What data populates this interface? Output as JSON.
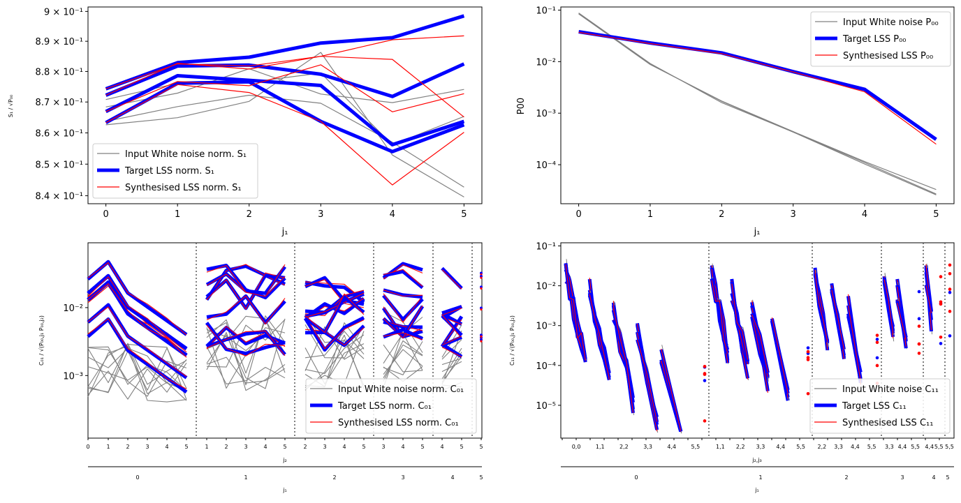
{
  "colors": {
    "input": "#808080",
    "target": "#0000ff",
    "synth": "#ff0000",
    "sep": "#555555"
  },
  "chart_data": [
    {
      "id": "s1",
      "type": "line",
      "scale": "log",
      "xlabel": "j_1",
      "ylabel": "S_1 / sqrt(P_00)",
      "xlim": [
        -0.25,
        5.25
      ],
      "ylim": [
        0.8375,
        0.9015
      ],
      "x": [
        0,
        1,
        2,
        3,
        4,
        5
      ],
      "yticks": [
        0.84,
        0.85,
        0.86,
        0.87,
        0.88,
        0.89,
        0.9
      ],
      "ytick_labels": [
        "8.4 × 10⁻¹",
        "8.5 × 10⁻¹",
        "8.6 × 10⁻¹",
        "8.7 × 10⁻¹",
        "8.8 × 10⁻¹",
        "8.9 × 10⁻¹",
        "9 × 10⁻¹"
      ],
      "xtick_labels": [
        "0",
        "1",
        "2",
        "3",
        "4",
        "5"
      ],
      "series_input": [
        [
          0.8626,
          0.8649,
          0.8702,
          0.8863,
          0.8529,
          0.8396
        ],
        [
          0.8637,
          0.8685,
          0.8722,
          0.8696,
          0.857,
          0.8427
        ],
        [
          0.8684,
          0.8729,
          0.8809,
          0.8726,
          0.8698,
          0.8741
        ],
        [
          0.8708,
          0.8761,
          0.8764,
          0.8795,
          0.8562,
          0.8653
        ]
      ],
      "series_target": [
        [
          0.8743,
          0.8829,
          0.8847,
          0.8894,
          0.8912,
          0.8985
        ],
        [
          0.8722,
          0.8818,
          0.8821,
          0.8791,
          0.8718,
          0.8825
        ],
        [
          0.8669,
          0.8786,
          0.8771,
          0.8754,
          0.8562,
          0.8637
        ],
        [
          0.8633,
          0.8761,
          0.8766,
          0.8637,
          0.854,
          0.8626
        ]
      ],
      "series_synth": [
        [
          0.8743,
          0.8825,
          0.8818,
          0.885,
          0.884,
          0.8651
        ],
        [
          0.8722,
          0.8827,
          0.8808,
          0.885,
          0.8905,
          0.8918
        ],
        [
          0.8669,
          0.8767,
          0.8753,
          0.8822,
          0.8668,
          0.8727
        ],
        [
          0.8633,
          0.8757,
          0.8731,
          0.8637,
          0.8434,
          0.8602
        ]
      ],
      "legend": [
        "Input White noise norm. S₁",
        "Target LSS norm. S₁",
        "Synthesised LSS norm. S₁"
      ],
      "legend_loc": "lower-left"
    },
    {
      "id": "p00",
      "type": "line",
      "scale": "log",
      "xlabel": "j_1",
      "ylabel": "P00",
      "xlim": [
        -0.25,
        5.25
      ],
      "ylim": [
        1.75e-05,
        0.115
      ],
      "x": [
        0,
        1,
        2,
        3,
        4,
        5
      ],
      "yticks": [
        0.0001,
        0.001,
        0.01,
        0.1
      ],
      "ytick_labels": [
        "10⁻⁴",
        "10⁻³",
        "10⁻²",
        "10⁻¹"
      ],
      "xtick_labels": [
        "0",
        "1",
        "2",
        "3",
        "4",
        "5"
      ],
      "series_input": [
        [
          0.085,
          0.0089,
          0.0017,
          0.00043,
          0.00011,
          2.7e-05
        ],
        [
          0.088,
          0.0092,
          0.0016,
          0.00043,
          0.000103,
          2.6e-05
        ],
        [
          0.0845,
          0.0088,
          0.00172,
          0.00044,
          0.000115,
          3.3e-05
        ]
      ],
      "series_target": [
        [
          0.038,
          0.023,
          0.0148,
          0.0064,
          0.0029,
          0.00031
        ]
      ],
      "series_synth": [
        [
          0.037,
          0.0224,
          0.0143,
          0.0063,
          0.0026,
          0.00025
        ]
      ],
      "legend": [
        "Input White noise P₀₀",
        "Target LSS P₀₀",
        "Synthesised LSS P₀₀"
      ],
      "legend_loc": "top-right"
    },
    {
      "id": "c01",
      "type": "line",
      "scale": "log",
      "xlabel": "j_2",
      "xlabel2": "j_1",
      "ylabel": "C_01 / sqrt(P_00,j1 P_00,j2)",
      "ylim": [
        0.00012,
        0.09
      ],
      "yticks": [
        0.001,
        0.01
      ],
      "ytick_labels": [
        "10⁻³",
        "10⁻²"
      ],
      "groups": [
        {
          "j1": "0",
          "j2": [
            "0",
            "1",
            "2",
            "3",
            "4",
            "5"
          ]
        },
        {
          "j1": "1",
          "j2": [
            "1",
            "2",
            "3",
            "4",
            "5"
          ]
        },
        {
          "j1": "2",
          "j2": [
            "2",
            "3",
            "4",
            "5"
          ]
        },
        {
          "j1": "3",
          "j2": [
            "3",
            "4",
            "5"
          ]
        },
        {
          "j1": "4",
          "j2": [
            "4",
            "5"
          ]
        },
        {
          "j1": "5",
          "j2": [
            "5"
          ]
        }
      ],
      "legend": [
        "Input White noise norm. C₀₁",
        "Target LSS norm. C₀₁",
        "Synthesised LSS norm. C₀₁"
      ],
      "legend_loc": "lower-right"
    },
    {
      "id": "c11",
      "type": "line",
      "scale": "log",
      "xlabel": "j_2,j_3",
      "xlabel2": "j_1",
      "ylabel": "C_11 / sqrt(P_00,j1 P_00,j2)",
      "ylim": [
        1.5e-06,
        0.12
      ],
      "yticks": [
        1e-05,
        0.0001,
        0.001,
        0.01,
        0.1
      ],
      "ytick_labels": [
        "10⁻⁵",
        "10⁻⁴",
        "10⁻³",
        "10⁻²",
        "10⁻¹"
      ],
      "groups": [
        {
          "j1": "0",
          "j2": [
            "0",
            "1",
            "2",
            "3",
            "4",
            "5"
          ]
        },
        {
          "j1": "1",
          "j2": [
            "1",
            "2",
            "3",
            "4",
            "5"
          ]
        },
        {
          "j1": "2",
          "j2": [
            "2",
            "3",
            "4",
            "5"
          ]
        },
        {
          "j1": "3",
          "j2": [
            "3",
            "4",
            "5"
          ]
        },
        {
          "j1": "4",
          "j2": [
            "4",
            "5"
          ]
        },
        {
          "j1": "5",
          "j2": [
            "5"
          ]
        }
      ],
      "legend": [
        "Input White noise C₁₁",
        "Target LSS C₁₁",
        "Synthesised LSS C₁₁"
      ],
      "legend_loc": "lower-right"
    }
  ]
}
